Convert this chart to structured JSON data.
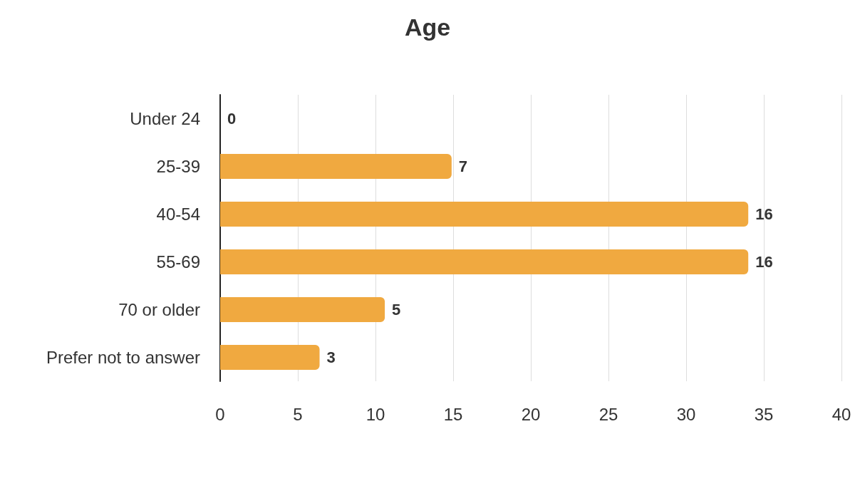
{
  "chart_data": {
    "type": "bar",
    "orientation": "horizontal",
    "title": "Age",
    "categories": [
      "Under 24",
      "25-39",
      "40-54",
      "55-69",
      "70 or older",
      "Prefer not to answer"
    ],
    "values": [
      0,
      14.9,
      34.0,
      34.0,
      10.6,
      6.4
    ],
    "annotations": [
      {
        "text": "0",
        "x": 0,
        "y": "Under 24"
      },
      {
        "text": "7",
        "x": 14.9,
        "y": "25-39"
      },
      {
        "text": "16",
        "x": 34.0,
        "y": "40-54"
      },
      {
        "text": "16",
        "x": 34.0,
        "y": "55-69"
      },
      {
        "text": "5",
        "x": 10.6,
        "y": "70 or older"
      },
      {
        "text": "3",
        "x": 6.4,
        "y": "Prefer not to answer"
      }
    ],
    "color": "#f0a940",
    "xlim": [
      0,
      40
    ],
    "xticks": [
      0,
      5,
      10,
      15,
      20,
      25,
      30,
      35,
      40
    ],
    "grid": "x"
  }
}
